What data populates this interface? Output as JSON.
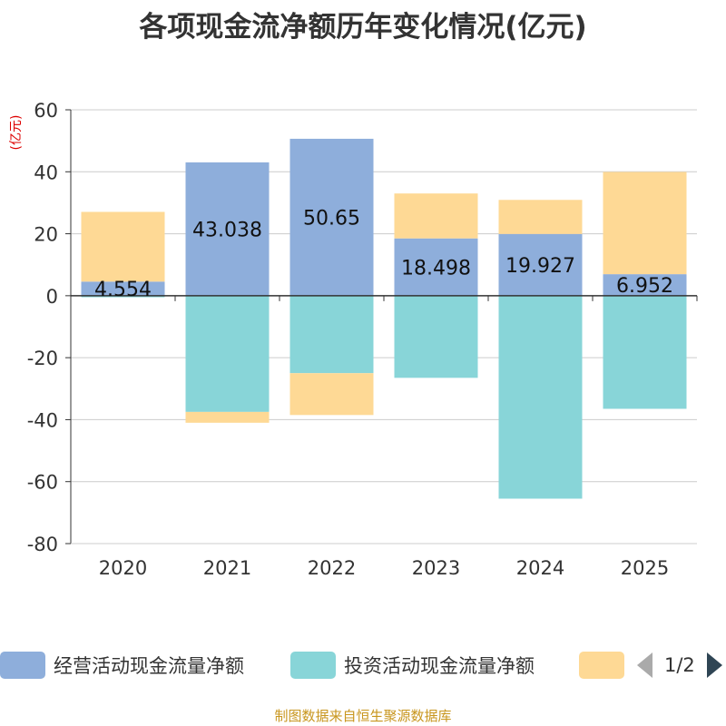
{
  "title": "各项现金流净额历年变化情况(亿元)",
  "source": "制图数据来自恒生聚源数据库",
  "legend": {
    "items": [
      {
        "name": "经营活动现金流量净额",
        "color": "#8eaedb"
      },
      {
        "name": "投资活动现金流量净额",
        "color": "#88d5d8"
      },
      {
        "name": "",
        "color": "#fed995"
      }
    ],
    "page": "1/2"
  },
  "chart_data": {
    "type": "bar",
    "stacked": true,
    "title": "各项现金流净额历年变化情况(亿元)",
    "ylabel": "(亿元)",
    "xlabel": "",
    "ylim": [
      -80,
      60
    ],
    "yticks": [
      60,
      40,
      20,
      0,
      -20,
      -40,
      -60,
      -80
    ],
    "grid": true,
    "categories": [
      "2020",
      "2021",
      "2022",
      "2023",
      "2024",
      "2025"
    ],
    "series": [
      {
        "name": "经营活动现金流量净额",
        "color": "#8eaedb",
        "values": [
          4.554,
          43.038,
          50.65,
          18.498,
          19.927,
          6.952
        ],
        "labels": [
          "4.554",
          "43.038",
          "50.65",
          "18.498",
          "19.927",
          "6.952"
        ]
      },
      {
        "name": "投资活动现金流量净额",
        "color": "#88d5d8",
        "values": [
          -0.5,
          -37.5,
          -25.0,
          -26.5,
          -65.5,
          -36.5
        ]
      },
      {
        "name": "",
        "color": "#fed995",
        "values": [
          22.5,
          -3.5,
          -13.5,
          14.5,
          11.0,
          33.0
        ]
      }
    ]
  }
}
